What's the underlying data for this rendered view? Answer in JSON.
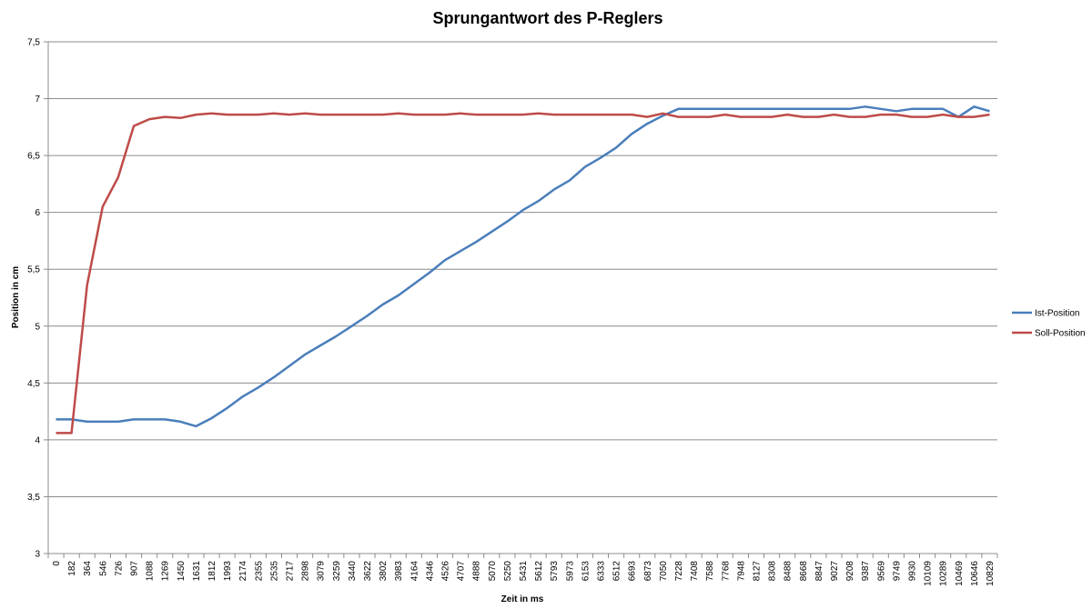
{
  "chart_data": {
    "type": "line",
    "title": "Sprungantwort des P-Reglers",
    "xlabel": "Zeit in ms",
    "ylabel": "Position in cm",
    "ylim": [
      3,
      7.5
    ],
    "yticks": [
      "3",
      "3,5",
      "4",
      "4,5",
      "5",
      "5,5",
      "6",
      "6,5",
      "7",
      "7,5"
    ],
    "grid": true,
    "legend_position": "right",
    "categories": [
      "0",
      "182",
      "364",
      "546",
      "726",
      "907",
      "1088",
      "1269",
      "1450",
      "1631",
      "1812",
      "1993",
      "2174",
      "2355",
      "2535",
      "2717",
      "2898",
      "3079",
      "3259",
      "3440",
      "3622",
      "3802",
      "3983",
      "4164",
      "4346",
      "4526",
      "4707",
      "4888",
      "5070",
      "5250",
      "5431",
      "5612",
      "5793",
      "5973",
      "6153",
      "6333",
      "6512",
      "6693",
      "6873",
      "7050",
      "7228",
      "7408",
      "7588",
      "7768",
      "7948",
      "8127",
      "8308",
      "8488",
      "8668",
      "8847",
      "9027",
      "9208",
      "9387",
      "9569",
      "9749",
      "9930",
      "10109",
      "10289",
      "10469",
      "10646",
      "10829"
    ],
    "series": [
      {
        "name": "Ist-Position",
        "color": "#4a7ebb",
        "values": [
          4.18,
          4.18,
          4.16,
          4.16,
          4.16,
          4.18,
          4.18,
          4.18,
          4.16,
          4.12,
          4.19,
          4.28,
          4.38,
          4.46,
          4.55,
          4.65,
          4.75,
          4.83,
          4.91,
          5.0,
          5.09,
          5.19,
          5.27,
          5.37,
          5.47,
          5.58,
          5.66,
          5.74,
          5.83,
          5.92,
          6.02,
          6.1,
          6.2,
          6.28,
          6.4,
          6.48,
          6.57,
          6.69,
          6.78,
          6.85,
          6.91,
          6.91,
          6.91,
          6.91,
          6.91,
          6.91,
          6.91,
          6.91,
          6.91,
          6.91,
          6.91,
          6.91,
          6.93,
          6.91,
          6.89,
          6.91,
          6.91,
          6.91,
          6.84,
          6.93,
          6.89
        ]
      },
      {
        "name": "Soll-Position",
        "color": "#be4b48",
        "values": [
          4.06,
          4.06,
          5.36,
          6.05,
          6.31,
          6.76,
          6.82,
          6.84,
          6.83,
          6.86,
          6.87,
          6.86,
          6.86,
          6.86,
          6.87,
          6.86,
          6.87,
          6.86,
          6.86,
          6.86,
          6.86,
          6.86,
          6.87,
          6.86,
          6.86,
          6.86,
          6.87,
          6.86,
          6.86,
          6.86,
          6.86,
          6.87,
          6.86,
          6.86,
          6.86,
          6.86,
          6.86,
          6.86,
          6.84,
          6.87,
          6.84,
          6.84,
          6.84,
          6.86,
          6.84,
          6.84,
          6.84,
          6.86,
          6.84,
          6.84,
          6.86,
          6.84,
          6.84,
          6.86,
          6.86,
          6.84,
          6.84,
          6.86,
          6.84,
          6.84,
          6.86
        ]
      }
    ]
  }
}
